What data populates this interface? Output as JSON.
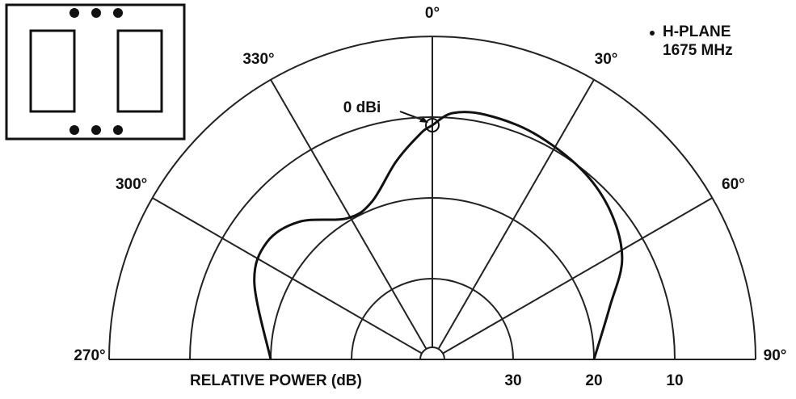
{
  "chart_data": {
    "type": "polar",
    "annotations": [
      "H-PLANE",
      "1675 MHz"
    ],
    "marker_label": "0 dBi",
    "radial_axis_label": "RELATIVE POWER (dB)",
    "rlim": [
      40,
      0
    ],
    "rticks": [
      30,
      20,
      10
    ],
    "thetaticks": [
      {
        "value": 270,
        "label": "270°"
      },
      {
        "value": 300,
        "label": "300°"
      },
      {
        "value": 330,
        "label": "330°"
      },
      {
        "value": 0,
        "label": "0°"
      },
      {
        "value": 30,
        "label": "30°"
      },
      {
        "value": 60,
        "label": "60°"
      },
      {
        "value": 90,
        "label": "90°"
      }
    ],
    "series": [
      {
        "color": "#111",
        "x": [
          270,
          293.4,
          305.3,
          316,
          329,
          339,
          349.6,
          357,
          0,
          4.7,
          12.1,
          24,
          38,
          50,
          62,
          73.5,
          90
        ],
        "values": [
          20,
          16,
          14.9,
          16.3,
          19.6,
          19.1,
          15.1,
          12,
          11,
          9.4,
          9,
          9.3,
          10.1,
          11.3,
          13.4,
          17.1,
          20
        ]
      }
    ]
  }
}
